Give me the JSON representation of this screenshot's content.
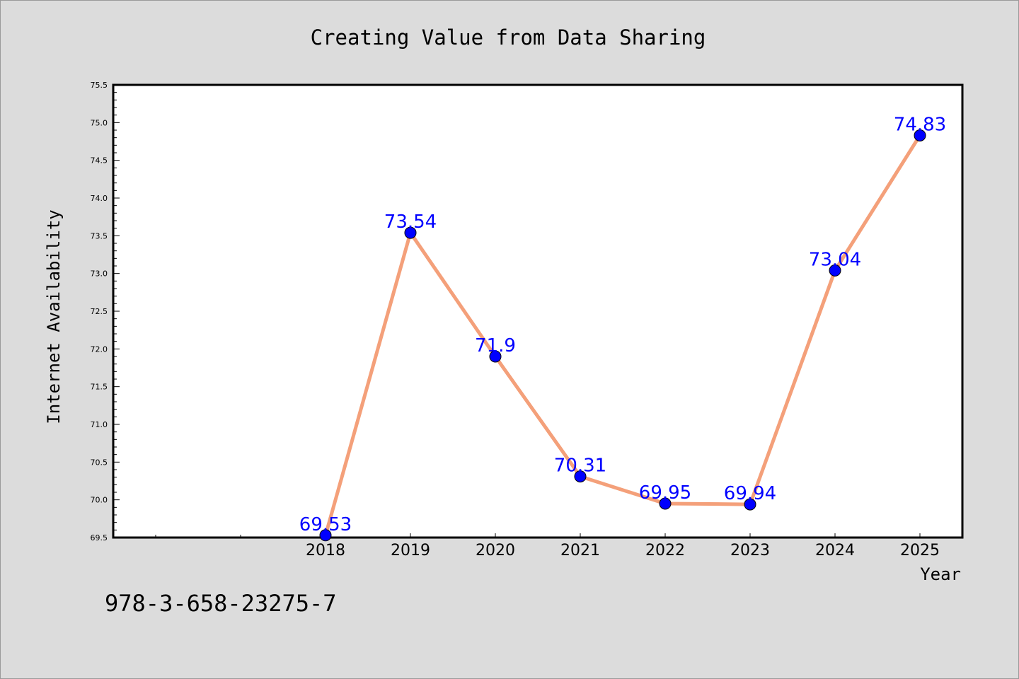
{
  "chart_data": {
    "type": "line",
    "title": "Creating Value from Data Sharing",
    "xlabel": "Year",
    "ylabel": "Internet Availability",
    "x": [
      "2018",
      "2019",
      "2020",
      "2021",
      "2022",
      "2023",
      "2024",
      "2025"
    ],
    "series": [
      {
        "values": [
          69.53,
          73.54,
          71.9,
          70.31,
          69.95,
          69.94,
          73.04,
          74.83
        ],
        "labels": [
          "69.53",
          "73.54",
          "71.9",
          "70.31",
          "69.95",
          "69.94",
          "73.04",
          "74.83"
        ]
      }
    ],
    "ylim": [
      69.5,
      75.5
    ],
    "yticks": [
      "69.5",
      "70.0",
      "70.5",
      "71.0",
      "71.5",
      "72.0",
      "72.5",
      "73.0",
      "73.5",
      "74.0",
      "74.5",
      "75.0",
      "75.5"
    ],
    "grid": false,
    "line_color": "#f4a07a",
    "marker_color": "#0000ff",
    "label_color": "#0000ff"
  },
  "footer": {
    "isbn": "978-3-658-23275-7"
  }
}
